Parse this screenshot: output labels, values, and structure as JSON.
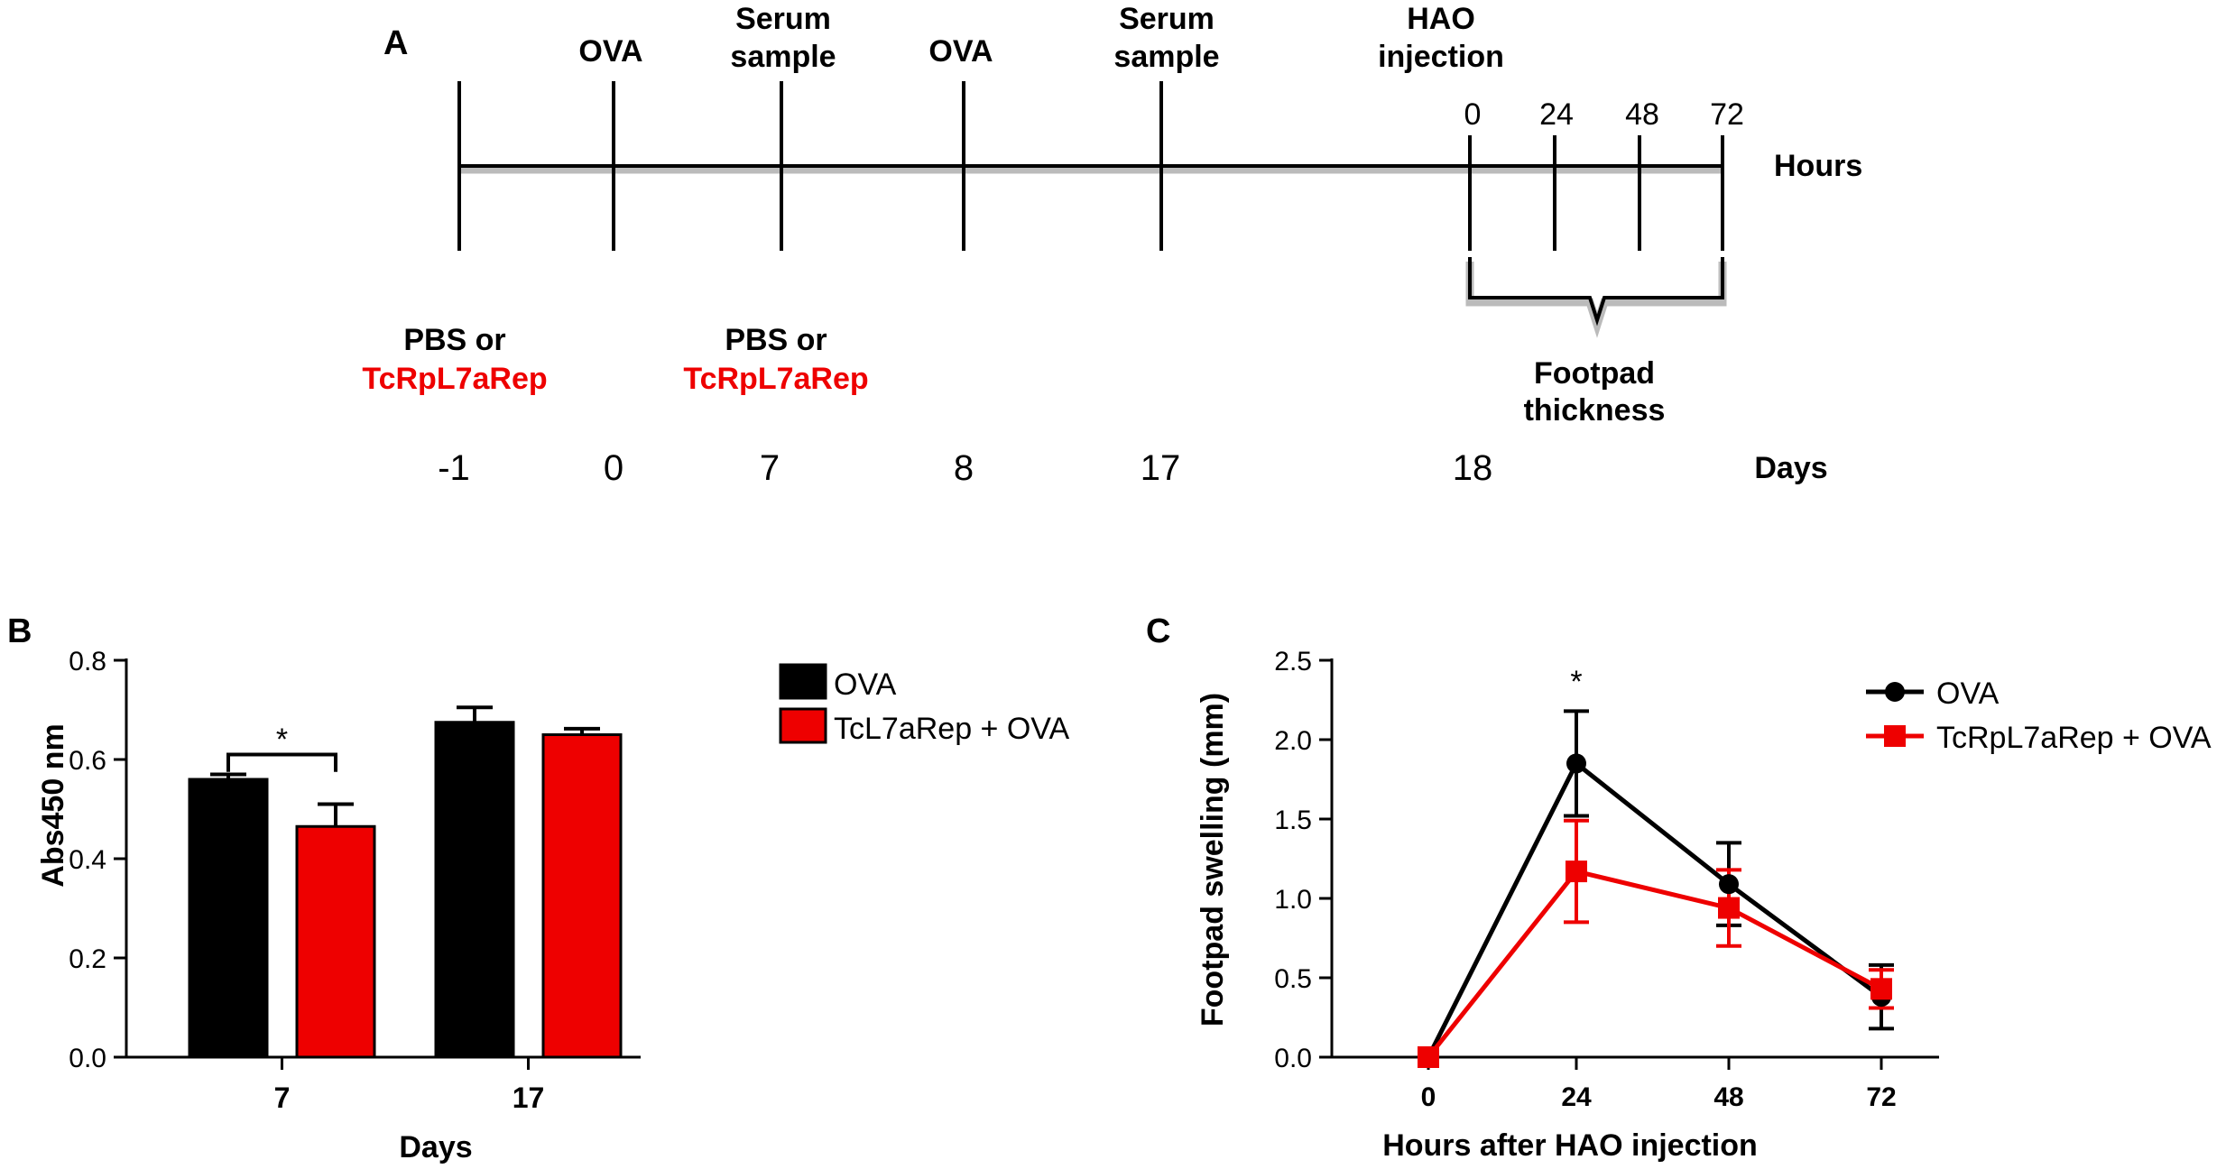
{
  "colors": {
    "black": "#000000",
    "red": "#ee0000",
    "axis": "#000000"
  },
  "panel_a": {
    "label": "A",
    "top_labels": [
      {
        "lines": [
          "OVA"
        ]
      },
      {
        "lines": [
          "Serum",
          "sample"
        ]
      },
      {
        "lines": [
          "OVA"
        ]
      },
      {
        "lines": [
          "Serum",
          "sample"
        ]
      },
      {
        "lines": [
          "HAO",
          "injection"
        ]
      }
    ],
    "hour_ticks": [
      "0",
      "24",
      "48",
      "72"
    ],
    "hours_label": "Hours",
    "treatments": [
      {
        "line1": "PBS or",
        "line2": "TcRpL7aRep"
      },
      {
        "line1": "PBS or",
        "line2": "TcRpL7aRep"
      }
    ],
    "footpad_label": [
      "Footpad",
      "thickness"
    ],
    "days": [
      "-1",
      "0",
      "7",
      "8",
      "17",
      "18"
    ],
    "days_label": "Days"
  },
  "panel_b_label": "B",
  "panel_c_label": "C",
  "chart_data": [
    {
      "id": "B",
      "type": "bar",
      "categories": [
        "7",
        "17"
      ],
      "series": [
        {
          "name": "OVA",
          "color": "#000000",
          "values": [
            0.56,
            0.675
          ],
          "errors": [
            0.01,
            0.03
          ]
        },
        {
          "name": "TcL7aRep + OVA",
          "color": "#ee0000",
          "values": [
            0.465,
            0.65
          ],
          "errors": [
            0.045,
            0.012
          ]
        }
      ],
      "xlabel": "Days",
      "ylabel": "Abs450 nm",
      "ylim": [
        0,
        0.8
      ],
      "yticks": [
        "0.0",
        "0.2",
        "0.4",
        "0.6",
        "0.8"
      ],
      "annotations": [
        {
          "text": "*",
          "category": "7"
        }
      ],
      "legend": "right"
    },
    {
      "id": "C",
      "type": "line",
      "x": [
        0,
        24,
        48,
        72
      ],
      "xticks": [
        "0",
        "24",
        "48",
        "72"
      ],
      "series": [
        {
          "name": "OVA",
          "color": "#000000",
          "marker": "circle",
          "values": [
            0,
            1.85,
            1.09,
            0.38
          ],
          "errors": [
            0,
            0.33,
            0.26,
            0.2
          ]
        },
        {
          "name": "TcRpL7aRep + OVA",
          "color": "#ee0000",
          "marker": "square",
          "values": [
            0,
            1.17,
            0.94,
            0.43
          ],
          "errors": [
            0,
            0.32,
            0.24,
            0.12
          ]
        }
      ],
      "xlabel": "Hours after HAO injection",
      "ylabel": "Footpad swelling (mm)",
      "ylim": [
        0,
        2.5
      ],
      "yticks": [
        "0.0",
        "0.5",
        "1.0",
        "1.5",
        "2.0",
        "2.5"
      ],
      "annotations": [
        {
          "text": "*",
          "x": 24
        }
      ],
      "legend": "right"
    }
  ]
}
